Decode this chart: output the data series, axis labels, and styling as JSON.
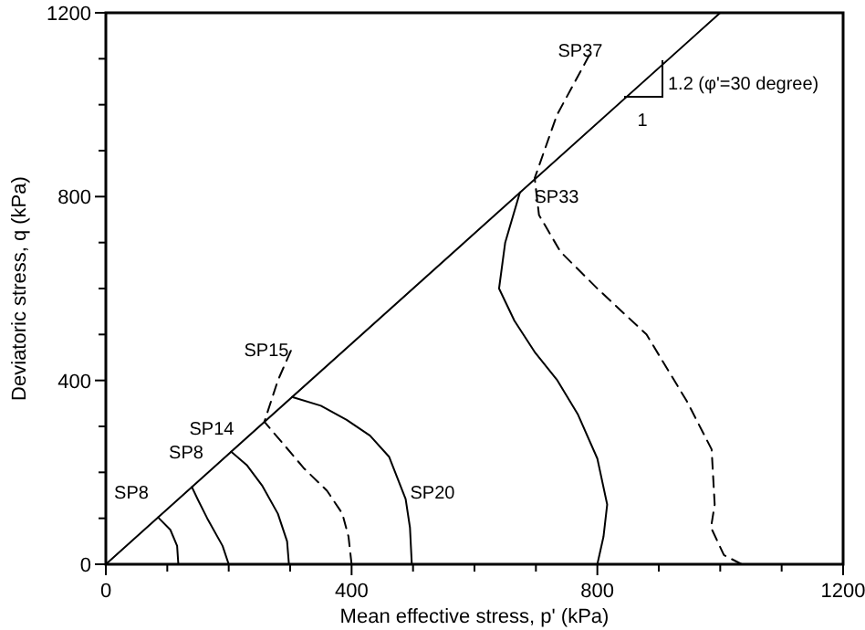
{
  "chart_data": {
    "type": "line",
    "xlabel": "Mean effective stress, p' (kPa)",
    "ylabel": "Deviatoric stress, q (kPa)",
    "xlim": [
      0,
      1200
    ],
    "ylim": [
      0,
      1200
    ],
    "xticks": [
      0,
      {
        "value": 100,
        "label": null
      },
      {
        "value": 200,
        "label": null
      },
      {
        "value": 300,
        "label": null
      },
      400,
      {
        "value": 500,
        "label": null
      },
      {
        "value": 600,
        "label": null
      },
      {
        "value": 700,
        "label": null
      },
      800,
      {
        "value": 900,
        "label": null
      },
      {
        "value": 1000,
        "label": null
      },
      {
        "value": 1100,
        "label": null
      },
      1200
    ],
    "yticks": [
      0,
      {
        "value": 100,
        "label": null
      },
      {
        "value": 200,
        "label": null
      },
      {
        "value": 300,
        "label": null
      },
      400,
      {
        "value": 500,
        "label": null
      },
      {
        "value": 600,
        "label": null
      },
      {
        "value": 700,
        "label": null
      },
      800,
      {
        "value": 900,
        "label": null
      },
      {
        "value": 1000,
        "label": null
      },
      {
        "value": 1100,
        "label": null
      },
      1200
    ],
    "grid": false,
    "marker": "none",
    "series": [
      {
        "color": "#000000",
        "line_style": "solid",
        "x": [
          0,
          1000
        ],
        "values": [
          0,
          1200
        ]
      },
      {
        "name": "SP8",
        "color": "#000000",
        "line_style": "solid",
        "x": [
          118,
          116,
          105,
          85
        ],
        "values": [
          0,
          40,
          75,
          102
        ]
      },
      {
        "name": "SP8",
        "color": "#000000",
        "line_style": "solid",
        "x": [
          200,
          190,
          165,
          150,
          140
        ],
        "values": [
          0,
          40,
          100,
          140,
          168
        ]
      },
      {
        "name": "SP14",
        "color": "#000000",
        "line_style": "solid",
        "x": [
          298,
          295,
          280,
          255,
          230,
          204
        ],
        "values": [
          0,
          50,
          110,
          170,
          215,
          245
        ]
      },
      {
        "name": "SP15",
        "color": "#000000",
        "line_style": "dashed",
        "x": [
          400,
          395,
          385,
          360,
          323,
          290,
          258,
          280,
          303
        ],
        "values": [
          0,
          60,
          110,
          160,
          208,
          260,
          310,
          400,
          470
        ]
      },
      {
        "name": "SP20",
        "color": "#000000",
        "line_style": "solid",
        "x": [
          498,
          495,
          488,
          461,
          430,
          392,
          350,
          303
        ],
        "values": [
          0,
          80,
          142,
          234,
          280,
          314,
          345,
          364
        ]
      },
      {
        "name": "SP33",
        "color": "#000000",
        "line_style": "solid",
        "x": [
          800,
          810,
          816,
          800,
          768,
          735,
          699,
          665,
          640,
          650,
          674
        ],
        "values": [
          0,
          60,
          130,
          230,
          327,
          400,
          460,
          530,
          600,
          700,
          809
        ]
      },
      {
        "name": "SP37",
        "color": "#000000",
        "line_style": "dashed",
        "x": [
          1035,
          1006,
          985,
          991,
          986,
          946,
          880,
          800,
          740,
          705,
          698,
          734,
          787
        ],
        "values": [
          0,
          20,
          80,
          130,
          250,
          354,
          500,
          600,
          680,
          760,
          840,
          977,
          1108
        ]
      }
    ],
    "annotations": [
      "1",
      "1.2 (φ'=30 degree)"
    ]
  }
}
